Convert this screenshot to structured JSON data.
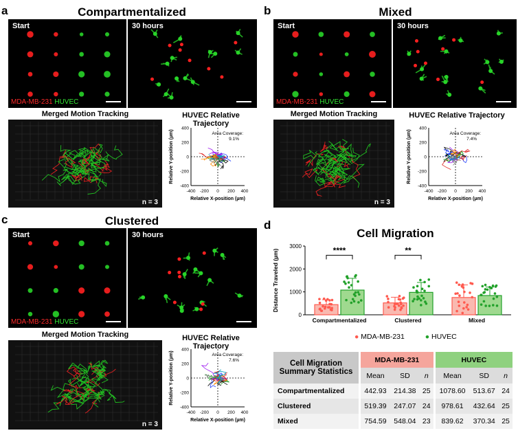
{
  "panels": {
    "a": {
      "letter": "a",
      "title": "Compartmentalized",
      "start_label": "Start",
      "later_label": "30 hours",
      "legend_red": "MDA-MB-231",
      "legend_green": "HUVEC",
      "tracking_title": "Merged Motion Tracking",
      "n_label": "n = 3",
      "trajectory_title": "HUVEC Relative Trajectory",
      "area_coverage_label": "Area Coverage:",
      "area_coverage_value": "9.1%",
      "xlabel": "Relative X-position (µm)",
      "ylabel": "Relative Y-position (µm)",
      "x_ticks": [
        "-400",
        "-200",
        "0",
        "200",
        "400"
      ],
      "y_ticks": [
        "400",
        "200",
        "0",
        "-200",
        "-400"
      ]
    },
    "b": {
      "letter": "b",
      "title": "Mixed",
      "start_label": "Start",
      "later_label": "30 hours",
      "legend_red": "MDA-MB-231",
      "legend_green": "HUVEC",
      "tracking_title": "Merged Motion Tracking",
      "n_label": "n = 3",
      "trajectory_title": "HUVEC Relative Trajectory",
      "area_coverage_label": "Area Coverage:",
      "area_coverage_value": "7.4%",
      "xlabel": "Relative X-position (µm)",
      "ylabel": "Relative Y-position (µm)",
      "x_ticks": [
        "-400",
        "-200",
        "0",
        "200",
        "400"
      ],
      "y_ticks": [
        "400",
        "200",
        "0",
        "-200",
        "-400"
      ]
    },
    "c": {
      "letter": "c",
      "title": "Clustered",
      "start_label": "Start",
      "later_label": "30 hours",
      "legend_red": "MDA-MB-231",
      "legend_green": "HUVEC",
      "tracking_title": "Merged Motion Tracking",
      "n_label": "n = 3",
      "trajectory_title": "HUVEC Relative Trajectory",
      "area_coverage_label": "Area Coverage:",
      "area_coverage_value": "7.6%",
      "xlabel": "Relative X-position (µm)",
      "ylabel": "Relative Y-position (µm)",
      "x_ticks": [
        "-400",
        "-200",
        "0",
        "200",
        "400"
      ],
      "y_ticks": [
        "400",
        "200",
        "0",
        "-200",
        "-400"
      ]
    },
    "d": {
      "letter": "d"
    }
  },
  "chart_data": {
    "type": "bar",
    "title": "Cell Migration",
    "ylabel": "Distance Traveled (µm)",
    "xlabel": "",
    "ylim": [
      0,
      3000
    ],
    "y_ticks": [
      "3000",
      "2000",
      "1000",
      "0"
    ],
    "categories": [
      "Compartmentalized",
      "Clustered",
      "Mixed"
    ],
    "series": [
      {
        "name": "MDA-MB-231",
        "color": "#ff5a4f",
        "fill": "#f9b9b0",
        "values": [
          442.93,
          519.39,
          754.59
        ],
        "sd": [
          214.38,
          247.07,
          548.04
        ]
      },
      {
        "name": "HUVEC",
        "color": "#22a12a",
        "fill": "#9fd98f",
        "values": [
          1078.6,
          978.61,
          839.62
        ],
        "sd": [
          513.67,
          432.64,
          370.34
        ]
      }
    ],
    "significance": [
      "****",
      "**",
      ""
    ]
  },
  "table": {
    "header_title_line1": "Cell Migration",
    "header_title_line2": "Summary Statistics",
    "group1": "MDA-MB-231",
    "group2": "HUVEC",
    "col_mean": "Mean",
    "col_sd": "SD",
    "col_n": "n",
    "rows": [
      {
        "label": "Compartmentalized",
        "m_mean": "442.93",
        "m_sd": "214.38",
        "m_n": "25",
        "h_mean": "1078.60",
        "h_sd": "513.67",
        "h_n": "24"
      },
      {
        "label": "Clustered",
        "m_mean": "519.39",
        "m_sd": "247.07",
        "m_n": "24",
        "h_mean": "978.61",
        "h_sd": "432.64",
        "h_n": "25"
      },
      {
        "label": "Mixed",
        "m_mean": "754.59",
        "m_sd": "548.04",
        "m_n": "23",
        "h_mean": "839.62",
        "h_sd": "370.34",
        "h_n": "25"
      }
    ]
  },
  "colors": {
    "red": "#ff2020",
    "green": "#28d428",
    "grey_header": "#c8c8c8"
  }
}
